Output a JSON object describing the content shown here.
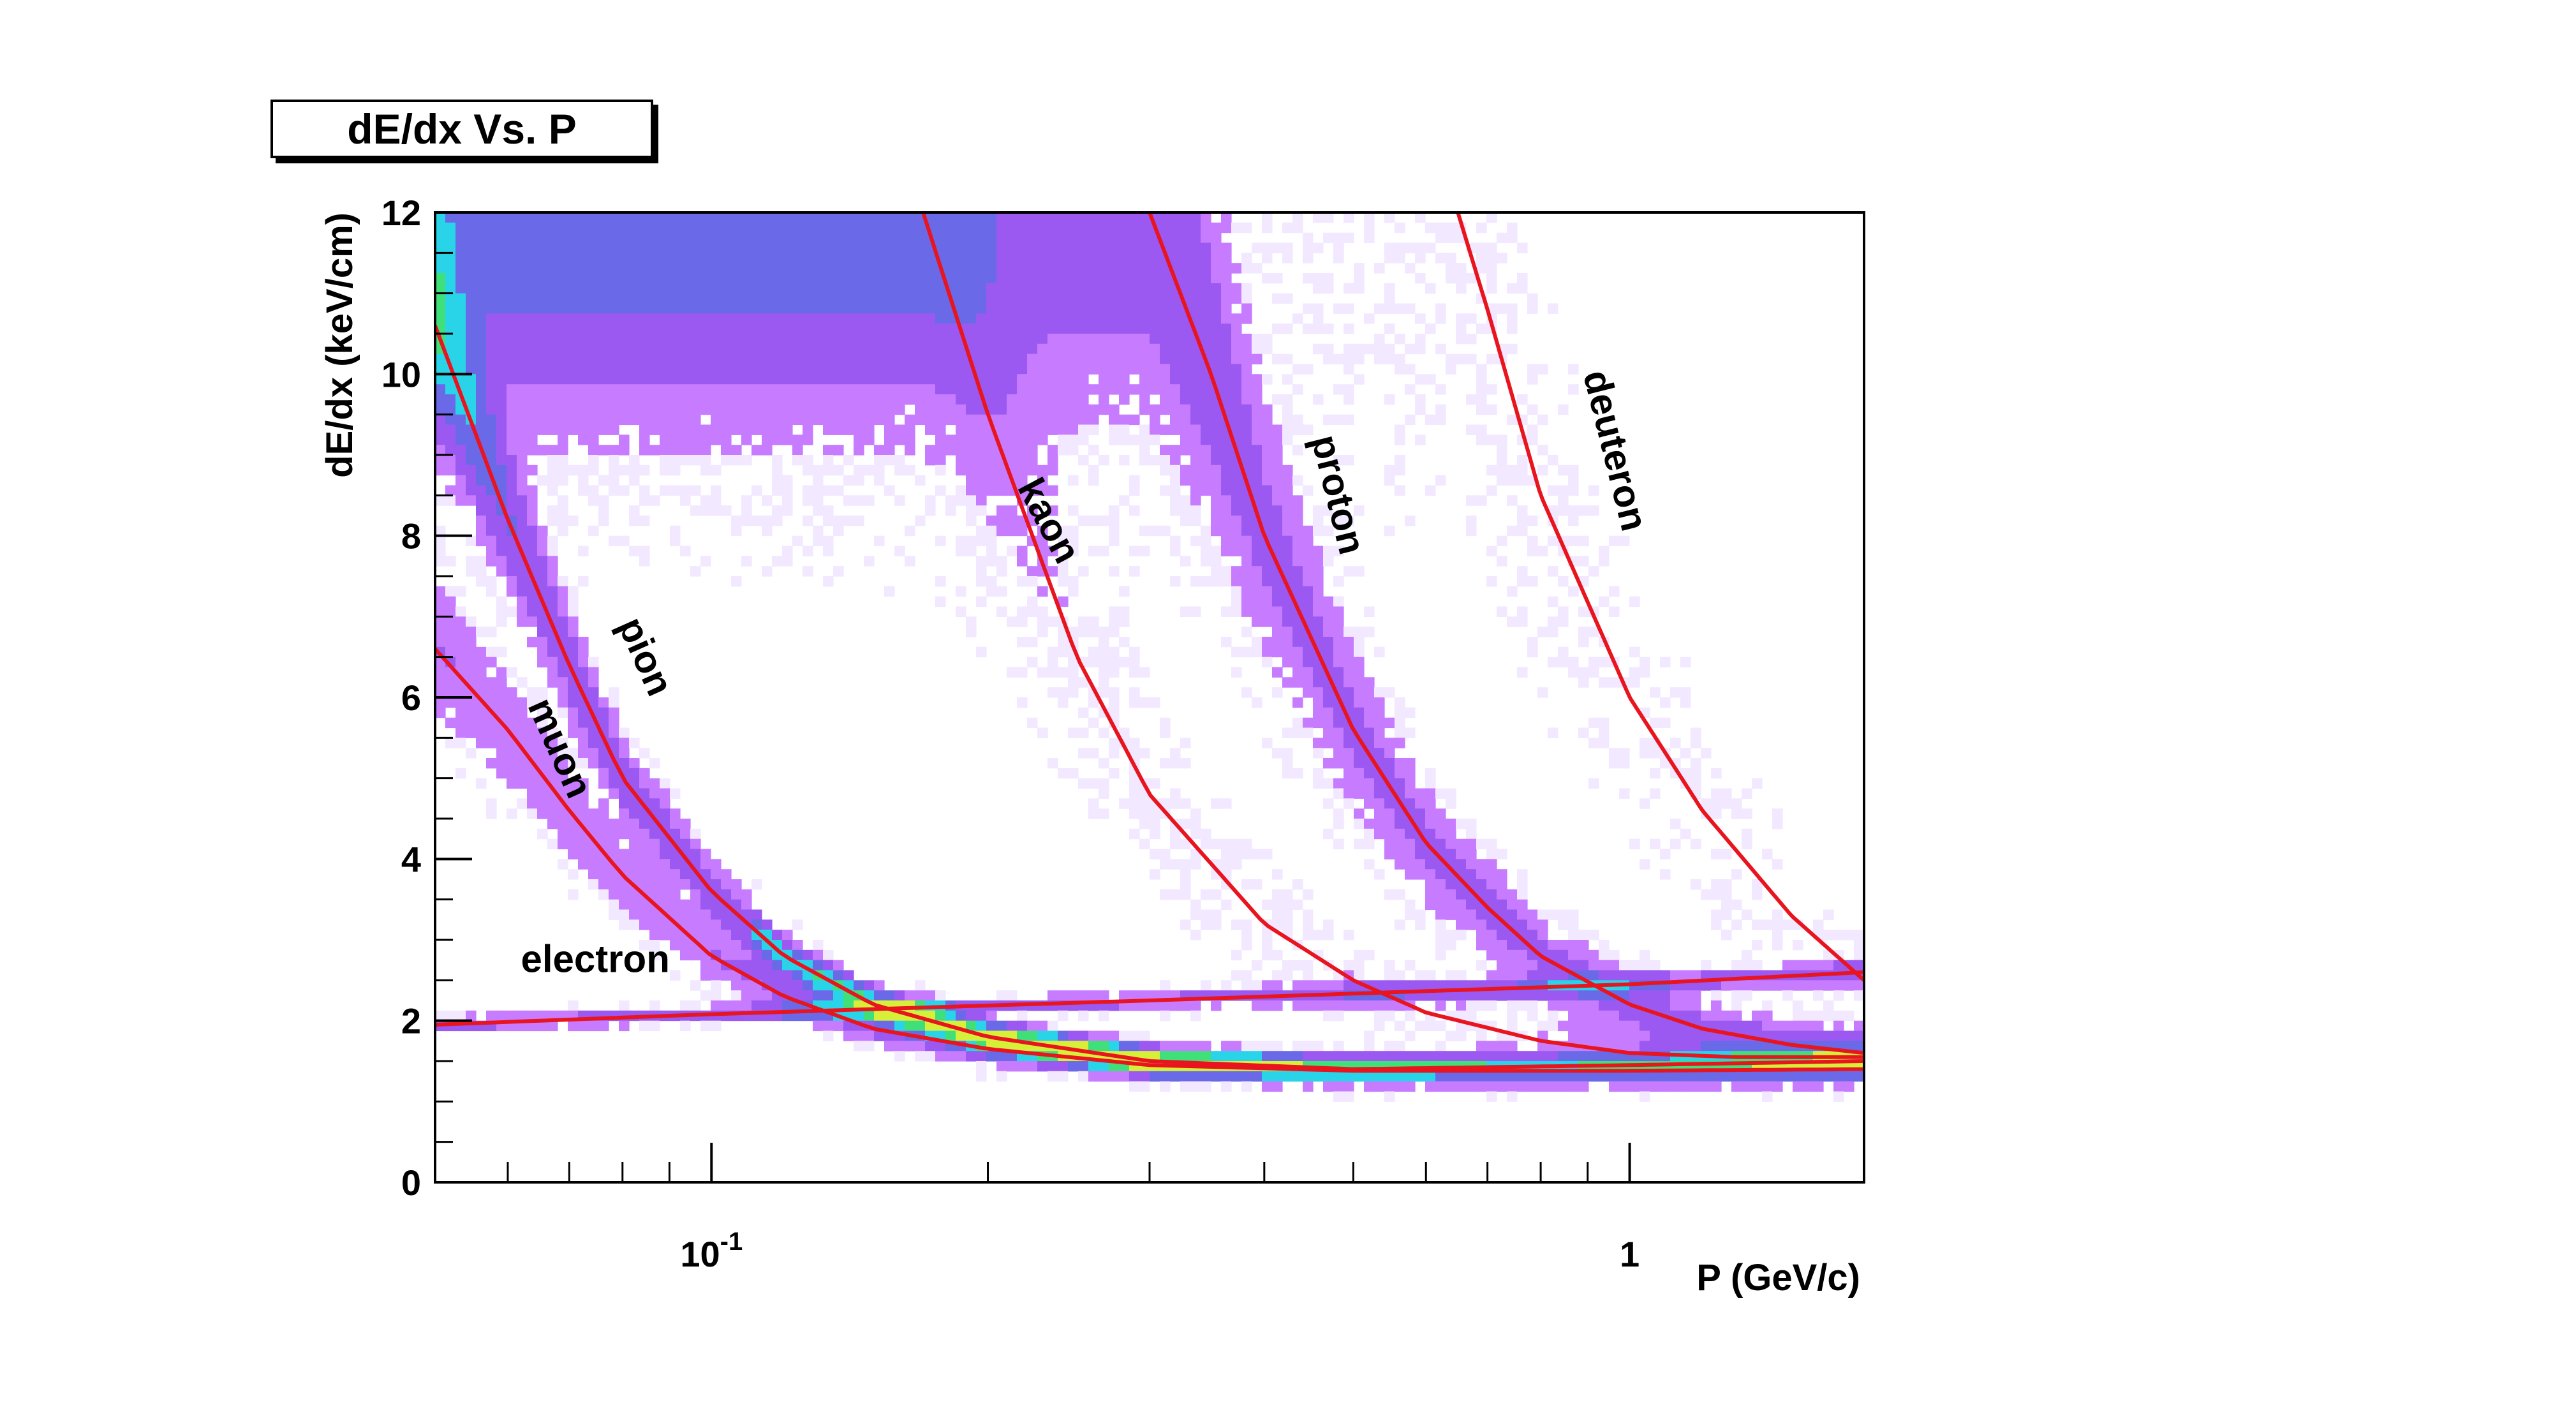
{
  "chart_data": {
    "type": "heatmap",
    "title": "dE/dx Vs. P",
    "xlabel": "P (GeV/c)",
    "ylabel": "dE/dx (keV/cm)",
    "x_scale": "log",
    "xlim": [
      0.05,
      1.8
    ],
    "ylim": [
      0,
      12
    ],
    "x_tick_labels": [
      {
        "value": 0.1,
        "base": "10",
        "exp": "-1"
      },
      {
        "value": 1,
        "base": "1",
        "exp": ""
      }
    ],
    "y_ticks": [
      0,
      2,
      4,
      6,
      8,
      10,
      12
    ],
    "grid": false,
    "curve_color": "#e8141e",
    "colormap": [
      "#f2e8ff",
      "#c77cff",
      "#9b59f2",
      "#6a6ae8",
      "#2ad4e8",
      "#3fe07a",
      "#d6f03a"
    ],
    "series": [
      {
        "name": "electron",
        "x": [
          0.05,
          0.1,
          0.3,
          1.0,
          1.8
        ],
        "y": [
          1.95,
          2.08,
          2.25,
          2.45,
          2.6
        ]
      },
      {
        "name": "muon",
        "x": [
          0.05,
          0.06,
          0.07,
          0.08,
          0.1,
          0.12,
          0.15,
          0.2,
          0.3,
          0.5,
          1.0,
          1.8
        ],
        "y": [
          6.6,
          5.6,
          4.6,
          3.8,
          2.8,
          2.3,
          1.9,
          1.65,
          1.45,
          1.38,
          1.38,
          1.4
        ]
      },
      {
        "name": "pion",
        "x": [
          0.05,
          0.06,
          0.07,
          0.08,
          0.1,
          0.12,
          0.15,
          0.2,
          0.3,
          0.5,
          1.0,
          1.8
        ],
        "y": [
          10.6,
          8.2,
          6.4,
          5.0,
          3.6,
          2.8,
          2.2,
          1.8,
          1.5,
          1.4,
          1.45,
          1.5
        ]
      },
      {
        "name": "kaon",
        "x": [
          0.17,
          0.2,
          0.25,
          0.3,
          0.4,
          0.5,
          0.6,
          0.8,
          1.0,
          1.3,
          1.8
        ],
        "y": [
          12.0,
          9.5,
          6.5,
          4.8,
          3.2,
          2.5,
          2.1,
          1.75,
          1.6,
          1.55,
          1.55
        ]
      },
      {
        "name": "proton",
        "x": [
          0.3,
          0.35,
          0.4,
          0.5,
          0.6,
          0.7,
          0.8,
          1.0,
          1.2,
          1.5,
          1.8
        ],
        "y": [
          12.0,
          10.0,
          8.0,
          5.6,
          4.2,
          3.4,
          2.8,
          2.2,
          1.9,
          1.7,
          1.6
        ]
      },
      {
        "name": "deuteron",
        "x": [
          0.65,
          0.7,
          0.8,
          1.0,
          1.2,
          1.5,
          1.8
        ],
        "y": [
          12.0,
          10.8,
          8.5,
          6.0,
          4.6,
          3.3,
          2.5
        ]
      }
    ],
    "curve_labels": [
      {
        "name": "electron",
        "text": "electron",
        "x": 0.062,
        "y": 2.6,
        "rotate": 0
      },
      {
        "name": "muon",
        "text": "muon",
        "x": 0.063,
        "y": 5.9,
        "rotate": 66
      },
      {
        "name": "pion",
        "text": "pion",
        "x": 0.079,
        "y": 6.9,
        "rotate": 66
      },
      {
        "name": "kaon",
        "text": "kaon",
        "x": 0.215,
        "y": 8.6,
        "rotate": 62
      },
      {
        "name": "proton",
        "text": "proton",
        "x": 0.45,
        "y": 9.2,
        "rotate": 76
      },
      {
        "name": "deuteron",
        "text": "deuteron",
        "x": 0.89,
        "y": 10.0,
        "rotate": 76
      }
    ]
  }
}
